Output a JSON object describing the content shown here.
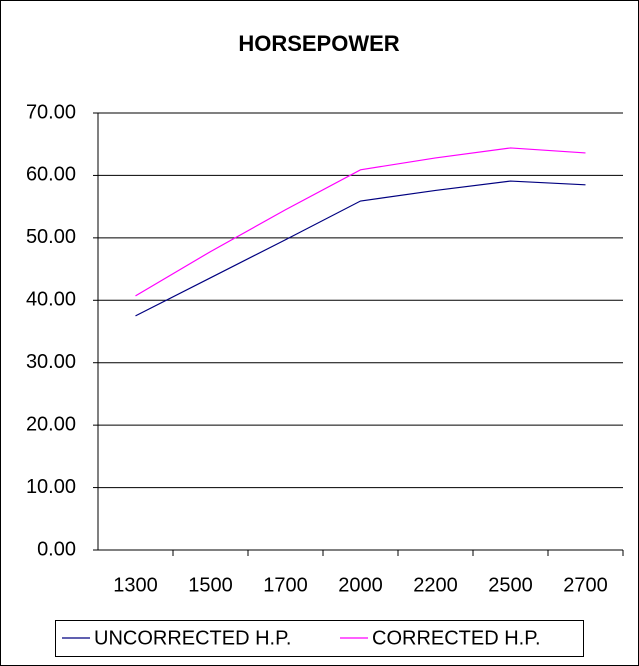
{
  "chart_data": {
    "type": "line",
    "title": "HORSEPOWER",
    "categories": [
      "1300",
      "1500",
      "1700",
      "2000",
      "2200",
      "2500",
      "2700"
    ],
    "series": [
      {
        "name": "UNCORRECTED H.P.",
        "color": "#000080",
        "values": [
          37.5,
          43.6,
          49.7,
          55.9,
          57.6,
          59.1,
          58.5
        ]
      },
      {
        "name": "CORRECTED H.P.",
        "color": "#ff00ff",
        "values": [
          40.7,
          47.8,
          54.5,
          60.9,
          62.8,
          64.4,
          63.6
        ]
      }
    ],
    "ylim": [
      0,
      70
    ],
    "yticks": [
      {
        "value": 0,
        "label": "0.00"
      },
      {
        "value": 10,
        "label": "10.00"
      },
      {
        "value": 20,
        "label": "20.00"
      },
      {
        "value": 30,
        "label": "30.00"
      },
      {
        "value": 40,
        "label": "40.00"
      },
      {
        "value": 50,
        "label": "50.00"
      },
      {
        "value": 60,
        "label": "60.00"
      },
      {
        "value": 70,
        "label": "70.00"
      }
    ],
    "grid": true,
    "legend": "bottom"
  }
}
